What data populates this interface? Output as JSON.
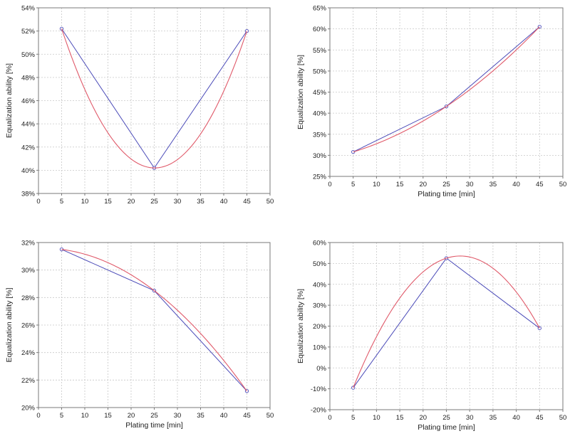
{
  "chart_data": [
    {
      "type": "line",
      "xlabel": "",
      "ylabel": "Equalization ability [%]",
      "xlim": [
        0,
        50
      ],
      "ylim": [
        38,
        54
      ],
      "xticks": [
        0,
        5,
        10,
        15,
        20,
        25,
        30,
        35,
        40,
        45,
        50
      ],
      "yticks": [
        38,
        40,
        42,
        44,
        46,
        48,
        50,
        52,
        54
      ],
      "ytick_suffix": "%",
      "grid": true,
      "series": [
        {
          "kind": "data-line",
          "color": "#4a4ab8",
          "x": [
            5,
            25,
            45
          ],
          "y": [
            52.2,
            40.2,
            52.0
          ]
        },
        {
          "kind": "fitted-curve",
          "color": "#e05a6a",
          "x": [
            5,
            25,
            45
          ],
          "y": [
            52.2,
            40.2,
            52.0
          ]
        }
      ]
    },
    {
      "type": "line",
      "xlabel": "Plating time [min]",
      "ylabel": "Equalization ability [%]",
      "xlim": [
        0,
        50
      ],
      "ylim": [
        25,
        65
      ],
      "xticks": [
        0,
        5,
        10,
        15,
        20,
        25,
        30,
        35,
        40,
        45,
        50
      ],
      "yticks": [
        25,
        30,
        35,
        40,
        45,
        50,
        55,
        60,
        65
      ],
      "ytick_suffix": "%",
      "grid": true,
      "series": [
        {
          "kind": "data-line",
          "color": "#4a4ab8",
          "x": [
            5,
            25,
            45
          ],
          "y": [
            30.8,
            41.6,
            60.5
          ]
        },
        {
          "kind": "fitted-curve",
          "color": "#e05a6a",
          "x": [
            5,
            25,
            45
          ],
          "y": [
            30.8,
            41.6,
            60.5
          ]
        }
      ]
    },
    {
      "type": "line",
      "xlabel": "Plating time [min]",
      "ylabel": "Equalization ability [%]",
      "xlim": [
        0,
        50
      ],
      "ylim": [
        20,
        32
      ],
      "xticks": [
        0,
        5,
        10,
        15,
        20,
        25,
        30,
        35,
        40,
        45,
        50
      ],
      "yticks": [
        20,
        22,
        24,
        26,
        28,
        30,
        32
      ],
      "ytick_suffix": "%",
      "grid": true,
      "series": [
        {
          "kind": "data-line",
          "color": "#4a4ab8",
          "x": [
            5,
            25,
            45
          ],
          "y": [
            31.5,
            28.5,
            21.2
          ]
        },
        {
          "kind": "fitted-curve",
          "color": "#e05a6a",
          "x": [
            5,
            25,
            45
          ],
          "y": [
            31.5,
            28.5,
            21.2
          ]
        }
      ]
    },
    {
      "type": "line",
      "xlabel": "Plating time [min]",
      "ylabel": "Equalization ability [%]",
      "xlim": [
        0,
        50
      ],
      "ylim": [
        -20,
        60
      ],
      "xticks": [
        0,
        5,
        10,
        15,
        20,
        25,
        30,
        35,
        40,
        45,
        50
      ],
      "yticks": [
        -20,
        -10,
        0,
        10,
        20,
        30,
        40,
        50,
        60
      ],
      "ytick_suffix": "%",
      "grid": true,
      "series": [
        {
          "kind": "data-line",
          "color": "#4a4ab8",
          "x": [
            5,
            25,
            45
          ],
          "y": [
            -9.5,
            52.5,
            19.0
          ]
        },
        {
          "kind": "fitted-curve",
          "color": "#e05a6a",
          "x": [
            5,
            25,
            45
          ],
          "y": [
            -9.5,
            52.5,
            19.0
          ]
        }
      ]
    }
  ]
}
